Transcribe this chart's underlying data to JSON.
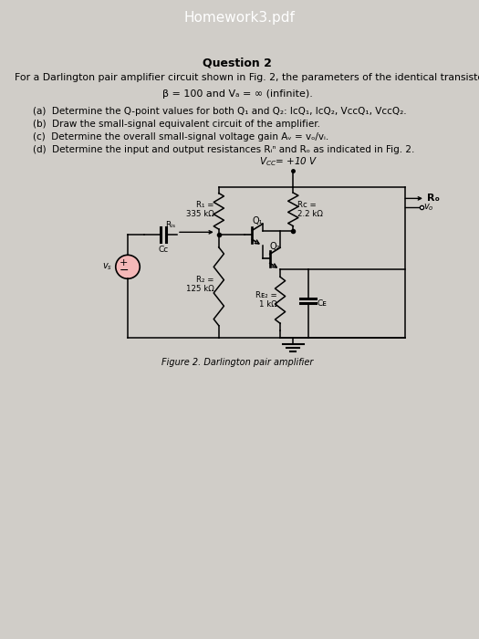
{
  "title": "Homework3.pdf",
  "bg_top": "#2a2a2a",
  "bg_main": "#d0cdc8",
  "question_title": "Question 2",
  "intro_text": "For a Darlington pair amplifier circuit shown in Fig. 2, the parameters of the identical transistors are given as:",
  "beta_text": "β = 100 and Vₐ = ∞ (infinite).",
  "part_a": "(a)  Determine the Q-point values for both Q₁ and Q₂: IᴄQ₁, IᴄQ₂, VᴄᴄQ₁, VᴄᴄQ₂.",
  "part_b": "(b)  Draw the small-signal equivalent circuit of the amplifier.",
  "part_c": "(c)  Determine the overall small-signal voltage gain Aᵥ = vₒ/vᵢ.",
  "part_d": "(d)  Determine the input and output resistances Rᵢⁿ and Rₒ as indicated in Fig. 2.",
  "fig_caption": "Figure 2. Darlington pair amplifier",
  "vcc_label": "V_{CC} = +10 V",
  "r1_label": "R₁ =\n335 kΩ",
  "rc_label": "Rᴄ =\n2.2 kΩ",
  "ro_label": "Rₒ",
  "ris_label": "Rᵢₛ",
  "cc_label": "Cᴄ",
  "q1_label": "Q₁",
  "q2_label": "Q₂",
  "r2_label": "R₂ =\n125 kΩ",
  "re2_label": "Rᴇ₂ =\n1 kΩ",
  "ce_label": "Cᴇ",
  "vs_label": "vₛ",
  "vo_label": "vₒ"
}
